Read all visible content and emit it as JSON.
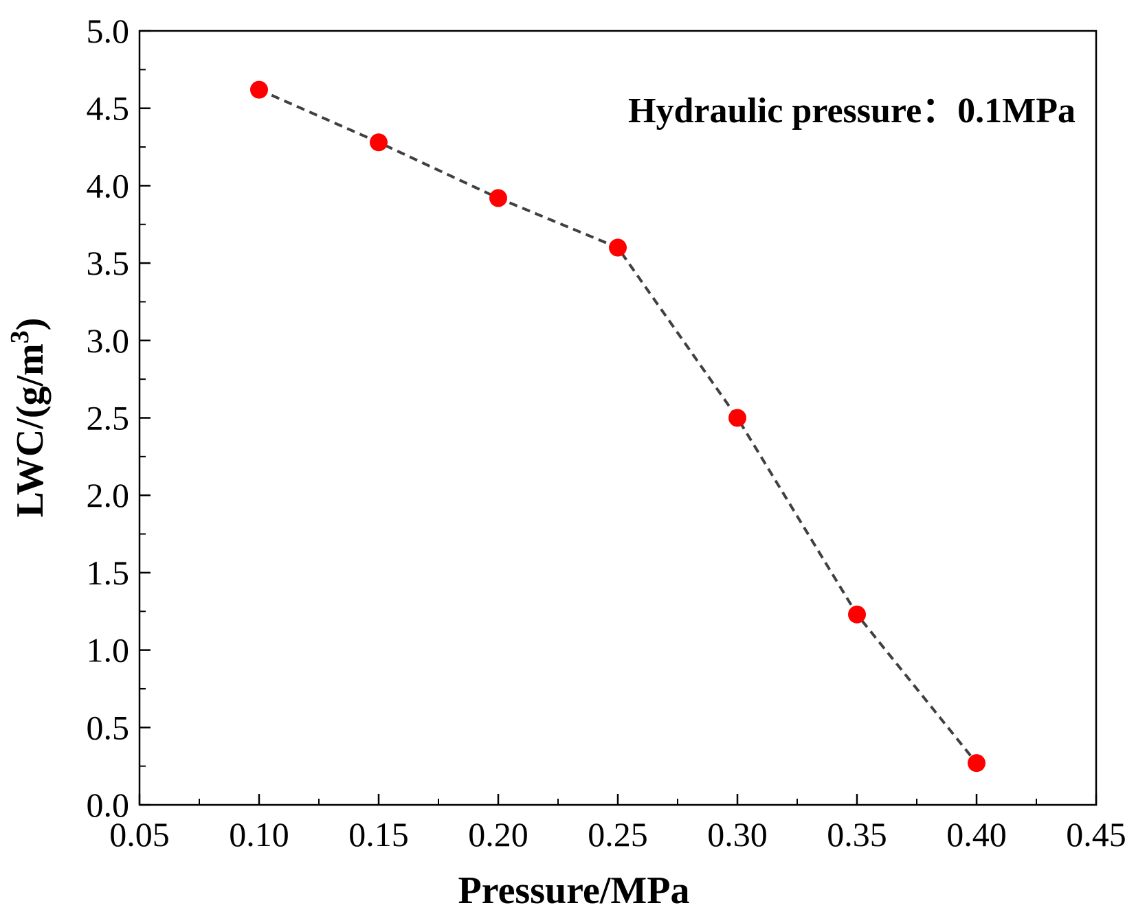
{
  "chart_data": {
    "type": "line",
    "x": [
      0.1,
      0.15,
      0.2,
      0.25,
      0.3,
      0.35,
      0.4
    ],
    "series": [
      {
        "name": "LWC",
        "values": [
          4.62,
          4.28,
          3.92,
          3.6,
          2.5,
          1.23,
          0.27
        ]
      }
    ],
    "xlabel": "Pressure/MPa",
    "ylabel": "LWC/(g/m",
    "ylabel_superscript": "3",
    "ylabel_suffix": ")",
    "annotation": "Hydraulic pressure：0.1MPa",
    "xlim": [
      0.05,
      0.45
    ],
    "ylim": [
      0.0,
      5.0
    ],
    "xticks": [
      "0.05",
      "0.10",
      "0.15",
      "0.20",
      "0.25",
      "0.30",
      "0.35",
      "0.40",
      "0.45"
    ],
    "yticks": [
      "0.0",
      "0.5",
      "1.0",
      "1.5",
      "2.0",
      "2.5",
      "3.0",
      "3.5",
      "4.0",
      "4.5",
      "5.0"
    ],
    "marker_color": "#ff0000",
    "line_color": "#404040",
    "line_style": "dashed",
    "grid": false
  }
}
